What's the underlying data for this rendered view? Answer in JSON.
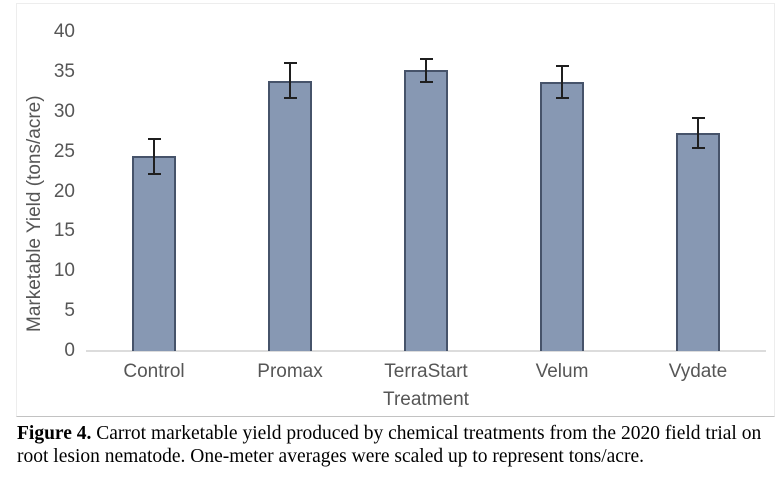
{
  "chart_data": {
    "type": "bar",
    "title": "",
    "categories": [
      "Control",
      "Promax",
      "TerraStart",
      "Velum",
      "Vydate"
    ],
    "values": [
      24.4,
      33.9,
      35.2,
      33.7,
      27.3
    ],
    "error_bars": [
      2.3,
      2.3,
      1.6,
      2.1,
      2.0
    ],
    "xlabel": "Treatment",
    "ylabel": "Marketable Yield (tons/acre)",
    "ylim": [
      0,
      40
    ],
    "yticks": [
      0,
      5,
      10,
      15,
      20,
      25,
      30,
      35,
      40
    ],
    "grid": false,
    "legend": false,
    "bar_color": "#8798B3",
    "bar_border_color": "#46536A",
    "error_bar_color": "#1f1f1f",
    "axis_line_color": "#dcdcdc",
    "tick_label_color": "#565656"
  },
  "caption": {
    "label": "Figure 4.",
    "line1": " Carrot marketable yield produced by chemical treatments from the 2020 field trial on",
    "line2": "root lesion nematode. One-meter averages were scaled up to represent tons/acre."
  }
}
